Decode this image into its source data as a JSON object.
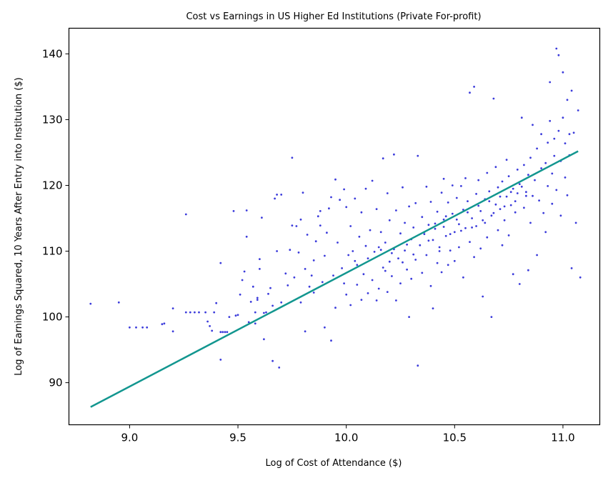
{
  "chart_data": {
    "type": "scatter",
    "title": "Cost vs Earnings in US Higher Ed Institutions (Private For-profit)",
    "xlabel": "Log of Cost of Attendance ($)",
    "ylabel": "Log of Earnings Squared, 10 Years After Entry into Institution ($)",
    "xlim": [
      8.72,
      11.17
    ],
    "ylim": [
      83.6,
      143.9
    ],
    "xticks": [
      "9.0",
      "9.5",
      "10.0",
      "10.5",
      "11.0"
    ],
    "yticks": [
      "90",
      "100",
      "110",
      "120",
      "130",
      "140"
    ],
    "grid": false,
    "colors": {
      "points": "#3b3bdb",
      "fit_line": "#12968f"
    },
    "fit_line": {
      "x": [
        8.82,
        11.07
      ],
      "y": [
        86.3,
        125.2
      ]
    },
    "series": [
      {
        "points": [
          [
            8.82,
            102.0
          ],
          [
            8.95,
            102.2
          ],
          [
            9.0,
            98.4
          ],
          [
            9.03,
            98.4
          ],
          [
            9.06,
            98.4
          ],
          [
            9.08,
            98.4
          ],
          [
            9.15,
            98.9
          ],
          [
            9.16,
            99.0
          ],
          [
            9.2,
            101.3
          ],
          [
            9.2,
            97.8
          ],
          [
            9.26,
            115.6
          ],
          [
            9.26,
            100.7
          ],
          [
            9.28,
            100.7
          ],
          [
            9.3,
            100.7
          ],
          [
            9.32,
            100.7
          ],
          [
            9.35,
            100.7
          ],
          [
            9.36,
            99.3
          ],
          [
            9.37,
            98.6
          ],
          [
            9.38,
            97.9
          ],
          [
            9.39,
            100.7
          ],
          [
            9.4,
            102.1
          ],
          [
            9.42,
            108.2
          ],
          [
            9.42,
            93.5
          ],
          [
            9.42,
            97.7
          ],
          [
            9.43,
            97.7
          ],
          [
            9.44,
            97.7
          ],
          [
            9.45,
            97.7
          ],
          [
            9.46,
            100.0
          ],
          [
            9.48,
            116.1
          ],
          [
            9.49,
            100.2
          ],
          [
            9.5,
            100.3
          ],
          [
            9.51,
            103.4
          ],
          [
            9.52,
            105.6
          ],
          [
            9.53,
            106.9
          ],
          [
            9.54,
            112.2
          ],
          [
            9.54,
            116.2
          ],
          [
            9.55,
            99.2
          ],
          [
            9.56,
            102.3
          ],
          [
            9.57,
            104.6
          ],
          [
            9.58,
            100.7
          ],
          [
            9.58,
            99.0
          ],
          [
            9.59,
            102.6
          ],
          [
            9.59,
            102.9
          ],
          [
            9.6,
            108.8
          ],
          [
            9.6,
            107.3
          ],
          [
            9.61,
            115.1
          ],
          [
            9.62,
            96.6
          ],
          [
            9.62,
            100.6
          ],
          [
            9.63,
            100.7
          ],
          [
            9.64,
            103.5
          ],
          [
            9.65,
            104.4
          ],
          [
            9.66,
            93.3
          ],
          [
            9.66,
            101.7
          ],
          [
            9.67,
            118.0
          ],
          [
            9.68,
            110.0
          ],
          [
            9.68,
            118.6
          ],
          [
            9.69,
            92.3
          ],
          [
            9.7,
            118.6
          ],
          [
            9.7,
            102.2
          ],
          [
            9.72,
            106.6
          ],
          [
            9.73,
            104.8
          ],
          [
            9.74,
            110.2
          ],
          [
            9.75,
            124.2
          ],
          [
            9.75,
            113.9
          ],
          [
            9.76,
            106.0
          ],
          [
            9.77,
            113.8
          ],
          [
            9.78,
            109.8
          ],
          [
            9.79,
            102.2
          ],
          [
            9.79,
            114.8
          ],
          [
            9.8,
            118.9
          ],
          [
            9.81,
            107.3
          ],
          [
            9.81,
            97.8
          ],
          [
            9.82,
            112.5
          ],
          [
            9.83,
            104.6
          ],
          [
            9.84,
            106.3
          ],
          [
            9.85,
            108.6
          ],
          [
            9.85,
            103.7
          ],
          [
            9.86,
            111.5
          ],
          [
            9.87,
            115.3
          ],
          [
            9.88,
            116.1
          ],
          [
            9.88,
            113.9
          ],
          [
            9.89,
            105.3
          ],
          [
            9.9,
            109.3
          ],
          [
            9.9,
            98.4
          ],
          [
            9.91,
            112.8
          ],
          [
            9.92,
            116.5
          ],
          [
            9.93,
            96.4
          ],
          [
            9.93,
            118.2
          ],
          [
            9.94,
            106.3
          ],
          [
            9.95,
            120.9
          ],
          [
            9.95,
            101.4
          ],
          [
            9.96,
            111.3
          ],
          [
            9.97,
            117.8
          ],
          [
            9.98,
            107.4
          ],
          [
            9.99,
            105.1
          ],
          [
            9.99,
            119.4
          ],
          [
            10.0,
            103.4
          ],
          [
            10.0,
            116.7
          ],
          [
            10.01,
            109.4
          ],
          [
            10.02,
            113.8
          ],
          [
            10.02,
            101.8
          ],
          [
            10.03,
            110.0
          ],
          [
            10.04,
            108.5
          ],
          [
            10.04,
            118.0
          ],
          [
            10.05,
            104.9
          ],
          [
            10.05,
            107.9
          ],
          [
            10.06,
            112.2
          ],
          [
            10.07,
            102.6
          ],
          [
            10.07,
            115.9
          ],
          [
            10.08,
            106.5
          ],
          [
            10.09,
            110.8
          ],
          [
            10.09,
            119.5
          ],
          [
            10.1,
            103.6
          ],
          [
            10.1,
            108.9
          ],
          [
            10.11,
            113.2
          ],
          [
            10.12,
            120.7
          ],
          [
            10.12,
            105.6
          ],
          [
            10.13,
            109.9
          ],
          [
            10.14,
            102.5
          ],
          [
            10.14,
            116.4
          ],
          [
            10.15,
            110.6
          ],
          [
            10.15,
            104.3
          ],
          [
            10.16,
            112.9
          ],
          [
            10.17,
            124.1
          ],
          [
            10.17,
            107.5
          ],
          [
            10.18,
            111.3
          ],
          [
            10.19,
            103.8
          ],
          [
            10.19,
            118.8
          ],
          [
            10.2,
            108.4
          ],
          [
            10.2,
            114.7
          ],
          [
            10.21,
            106.2
          ],
          [
            10.22,
            124.7
          ],
          [
            10.22,
            110.3
          ],
          [
            10.23,
            102.5
          ],
          [
            10.23,
            116.2
          ],
          [
            10.24,
            108.9
          ],
          [
            10.25,
            112.7
          ],
          [
            10.25,
            105.1
          ],
          [
            10.26,
            119.7
          ],
          [
            10.27,
            110.1
          ],
          [
            10.27,
            114.3
          ],
          [
            10.28,
            107.2
          ],
          [
            10.29,
            100.0
          ],
          [
            10.29,
            116.8
          ],
          [
            10.3,
            111.8
          ],
          [
            10.3,
            105.8
          ],
          [
            10.31,
            113.6
          ],
          [
            10.32,
            108.7
          ],
          [
            10.32,
            117.3
          ],
          [
            10.33,
            124.5
          ],
          [
            10.33,
            92.6
          ],
          [
            10.34,
            110.9
          ],
          [
            10.35,
            115.2
          ],
          [
            10.35,
            106.7
          ],
          [
            10.36,
            112.6
          ],
          [
            10.37,
            119.8
          ],
          [
            10.37,
            109.4
          ],
          [
            10.38,
            114.0
          ],
          [
            10.39,
            104.7
          ],
          [
            10.39,
            117.5
          ],
          [
            10.4,
            111.7
          ],
          [
            10.4,
            101.3
          ],
          [
            10.41,
            113.4
          ],
          [
            10.42,
            108.2
          ],
          [
            10.42,
            116.0
          ],
          [
            10.43,
            110.6
          ],
          [
            10.44,
            118.9
          ],
          [
            10.44,
            106.8
          ],
          [
            10.45,
            114.8
          ],
          [
            10.45,
            121.0
          ],
          [
            10.46,
            112.3
          ],
          [
            10.47,
            107.9
          ],
          [
            10.47,
            117.4
          ],
          [
            10.48,
            110.1
          ],
          [
            10.49,
            115.7
          ],
          [
            10.49,
            120.0
          ],
          [
            10.5,
            112.9
          ],
          [
            10.5,
            108.5
          ],
          [
            10.51,
            118.1
          ],
          [
            10.52,
            114.1
          ],
          [
            10.52,
            110.6
          ],
          [
            10.53,
            119.9
          ],
          [
            10.54,
            116.3
          ],
          [
            10.54,
            106.0
          ],
          [
            10.55,
            113.5
          ],
          [
            10.55,
            121.1
          ],
          [
            10.56,
            117.6
          ],
          [
            10.57,
            111.4
          ],
          [
            10.57,
            134.1
          ],
          [
            10.58,
            115.0
          ],
          [
            10.59,
            135.0
          ],
          [
            10.59,
            109.1
          ],
          [
            10.6,
            118.7
          ],
          [
            10.6,
            113.8
          ],
          [
            10.61,
            120.8
          ],
          [
            10.62,
            116.1
          ],
          [
            10.62,
            110.4
          ],
          [
            10.63,
            103.1
          ],
          [
            10.64,
            117.9
          ],
          [
            10.64,
            114.3
          ],
          [
            10.65,
            121.9
          ],
          [
            10.65,
            112.1
          ],
          [
            10.66,
            119.1
          ],
          [
            10.67,
            100.0
          ],
          [
            10.67,
            115.4
          ],
          [
            10.68,
            133.2
          ],
          [
            10.69,
            117.1
          ],
          [
            10.69,
            122.8
          ],
          [
            10.7,
            113.2
          ],
          [
            10.7,
            119.7
          ],
          [
            10.71,
            116.4
          ],
          [
            10.72,
            110.9
          ],
          [
            10.72,
            120.6
          ],
          [
            10.73,
            114.7
          ],
          [
            10.74,
            123.9
          ],
          [
            10.74,
            118.3
          ],
          [
            10.75,
            112.4
          ],
          [
            10.75,
            121.4
          ],
          [
            10.76,
            117.0
          ],
          [
            10.77,
            106.5
          ],
          [
            10.77,
            119.5
          ],
          [
            10.78,
            115.9
          ],
          [
            10.79,
            122.4
          ],
          [
            10.79,
            118.8
          ],
          [
            10.8,
            105.0
          ],
          [
            10.8,
            120.2
          ],
          [
            10.81,
            130.3
          ],
          [
            10.82,
            116.6
          ],
          [
            10.82,
            123.1
          ],
          [
            10.83,
            119.0
          ],
          [
            10.84,
            107.1
          ],
          [
            10.84,
            121.6
          ],
          [
            10.85,
            114.3
          ],
          [
            10.85,
            124.2
          ],
          [
            10.86,
            129.2
          ],
          [
            10.86,
            118.4
          ],
          [
            10.87,
            120.8
          ],
          [
            10.88,
            109.4
          ],
          [
            10.88,
            125.6
          ],
          [
            10.89,
            117.7
          ],
          [
            10.9,
            122.6
          ],
          [
            10.9,
            127.8
          ],
          [
            10.91,
            115.8
          ],
          [
            10.92,
            123.4
          ],
          [
            10.92,
            112.9
          ],
          [
            10.93,
            126.5
          ],
          [
            10.93,
            119.9
          ],
          [
            10.94,
            129.8
          ],
          [
            10.94,
            135.7
          ],
          [
            10.95,
            121.8
          ],
          [
            10.95,
            117.2
          ],
          [
            10.96,
            127.1
          ],
          [
            10.96,
            124.5
          ],
          [
            10.97,
            140.8
          ],
          [
            10.97,
            119.3
          ],
          [
            10.98,
            128.3
          ],
          [
            10.98,
            139.8
          ],
          [
            10.99,
            123.7
          ],
          [
            10.99,
            115.4
          ],
          [
            11.0,
            130.3
          ],
          [
            11.0,
            137.2
          ],
          [
            11.01,
            126.4
          ],
          [
            11.01,
            121.2
          ],
          [
            11.02,
            133.0
          ],
          [
            11.02,
            118.5
          ],
          [
            11.03,
            124.6
          ],
          [
            11.03,
            127.8
          ],
          [
            11.04,
            134.4
          ],
          [
            11.04,
            107.4
          ],
          [
            11.05,
            128.0
          ],
          [
            11.06,
            114.3
          ],
          [
            11.07,
            131.4
          ],
          [
            11.08,
            106.0
          ],
          [
            10.43,
            110.0
          ],
          [
            10.45,
            113.7
          ],
          [
            10.48,
            112.6
          ],
          [
            10.51,
            114.8
          ],
          [
            10.53,
            113.1
          ],
          [
            10.56,
            115.9
          ],
          [
            10.58,
            113.6
          ],
          [
            10.61,
            116.9
          ],
          [
            10.63,
            114.7
          ],
          [
            10.66,
            117.6
          ],
          [
            10.68,
            115.8
          ],
          [
            10.71,
            118.3
          ],
          [
            10.73,
            116.8
          ],
          [
            10.76,
            119.0
          ],
          [
            10.78,
            117.6
          ],
          [
            10.81,
            119.8
          ],
          [
            10.83,
            118.4
          ],
          [
            10.36,
            112.9
          ],
          [
            10.38,
            111.6
          ],
          [
            10.41,
            114.2
          ],
          [
            10.46,
            115.3
          ],
          [
            10.31,
            109.5
          ],
          [
            10.28,
            111.0
          ],
          [
            10.26,
            108.3
          ],
          [
            10.21,
            109.7
          ],
          [
            10.18,
            107.0
          ],
          [
            10.16,
            110.2
          ]
        ]
      }
    ]
  }
}
